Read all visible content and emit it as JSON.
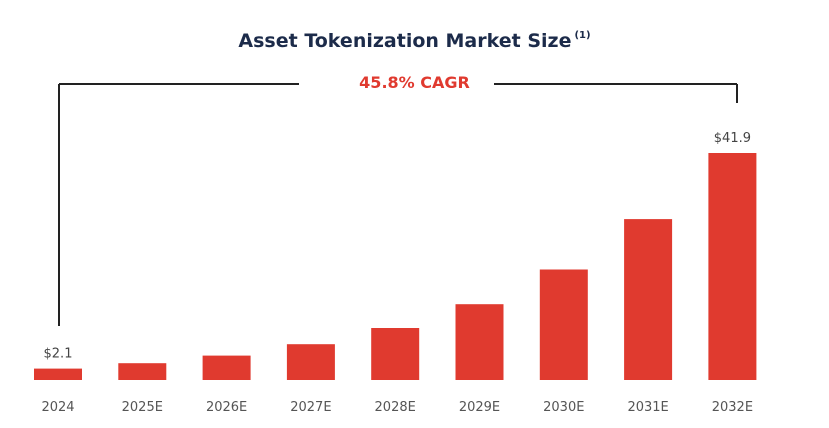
{
  "title": "Asset Tokenization Market Size",
  "footnote_mark": "(1)",
  "annotation": "45.8% CAGR",
  "colors": {
    "bar": "#e03a2f",
    "title": "#1c2b4a",
    "annotation": "#e03a2f",
    "bracket": "#222222"
  },
  "chart_data": {
    "type": "bar",
    "title": "Asset Tokenization Market Size",
    "categories": [
      "2024",
      "2025E",
      "2026E",
      "2027E",
      "2028E",
      "2029E",
      "2030E",
      "2031E",
      "2032E"
    ],
    "values": [
      2.1,
      3.1,
      4.5,
      6.6,
      9.6,
      14.0,
      20.4,
      29.7,
      41.9
    ],
    "data_labels": [
      {
        "index": 0,
        "text": "$2.1"
      },
      {
        "index": 8,
        "text": "$41.9"
      }
    ],
    "ylim": [
      0,
      41.9
    ],
    "grid": false,
    "legend": "none",
    "annotations": [
      "45.8% CAGR"
    ]
  }
}
